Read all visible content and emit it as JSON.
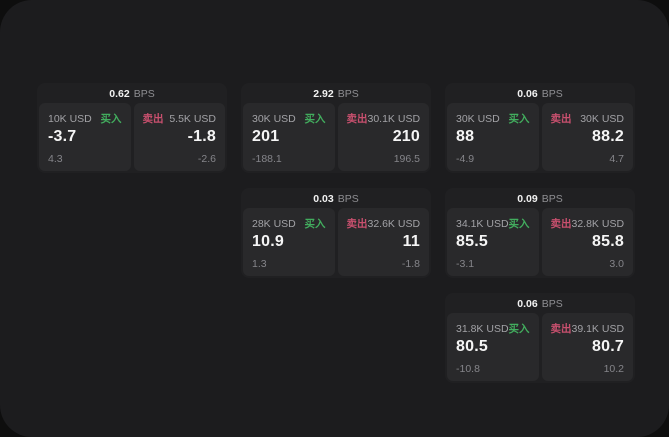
{
  "labels": {
    "bps_unit": "BPS",
    "buy": "买入",
    "sell": "卖出"
  },
  "colors": {
    "outer_background": "#0e0e0e",
    "window_background": "#1c1c1e",
    "card_background": "#202022",
    "panel_background": "#29292b",
    "buy_green": "#42ad5e",
    "sell_red": "#c8506e",
    "primary_text": "#f5f5f5",
    "secondary_text": "#a2a2a6"
  },
  "cards": [
    {
      "bps": "0.62",
      "buy": {
        "size": "10K USD",
        "price": "-3.7",
        "delta": "4.3"
      },
      "sell": {
        "size": "5.5K USD",
        "price": "-1.8",
        "delta": "-2.6"
      }
    },
    {
      "bps": "2.92",
      "buy": {
        "size": "30K USD",
        "price": "201",
        "delta": "-188.1"
      },
      "sell": {
        "size": "30.1K USD",
        "price": "210",
        "delta": "196.5"
      }
    },
    {
      "bps": "0.06",
      "buy": {
        "size": "30K USD",
        "price": "88",
        "delta": "-4.9"
      },
      "sell": {
        "size": "30K USD",
        "price": "88.2",
        "delta": "4.7"
      }
    },
    {
      "bps": "0.03",
      "buy": {
        "size": "28K USD",
        "price": "10.9",
        "delta": "1.3"
      },
      "sell": {
        "size": "32.6K USD",
        "price": "11",
        "delta": "-1.8"
      }
    },
    {
      "bps": "0.09",
      "buy": {
        "size": "34.1K USD",
        "price": "85.5",
        "delta": "-3.1"
      },
      "sell": {
        "size": "32.8K USD",
        "price": "85.8",
        "delta": "3.0"
      }
    },
    {
      "bps": "0.06",
      "buy": {
        "size": "31.8K USD",
        "price": "80.5",
        "delta": "-10.8"
      },
      "sell": {
        "size": "39.1K USD",
        "price": "80.7",
        "delta": "10.2"
      }
    }
  ]
}
